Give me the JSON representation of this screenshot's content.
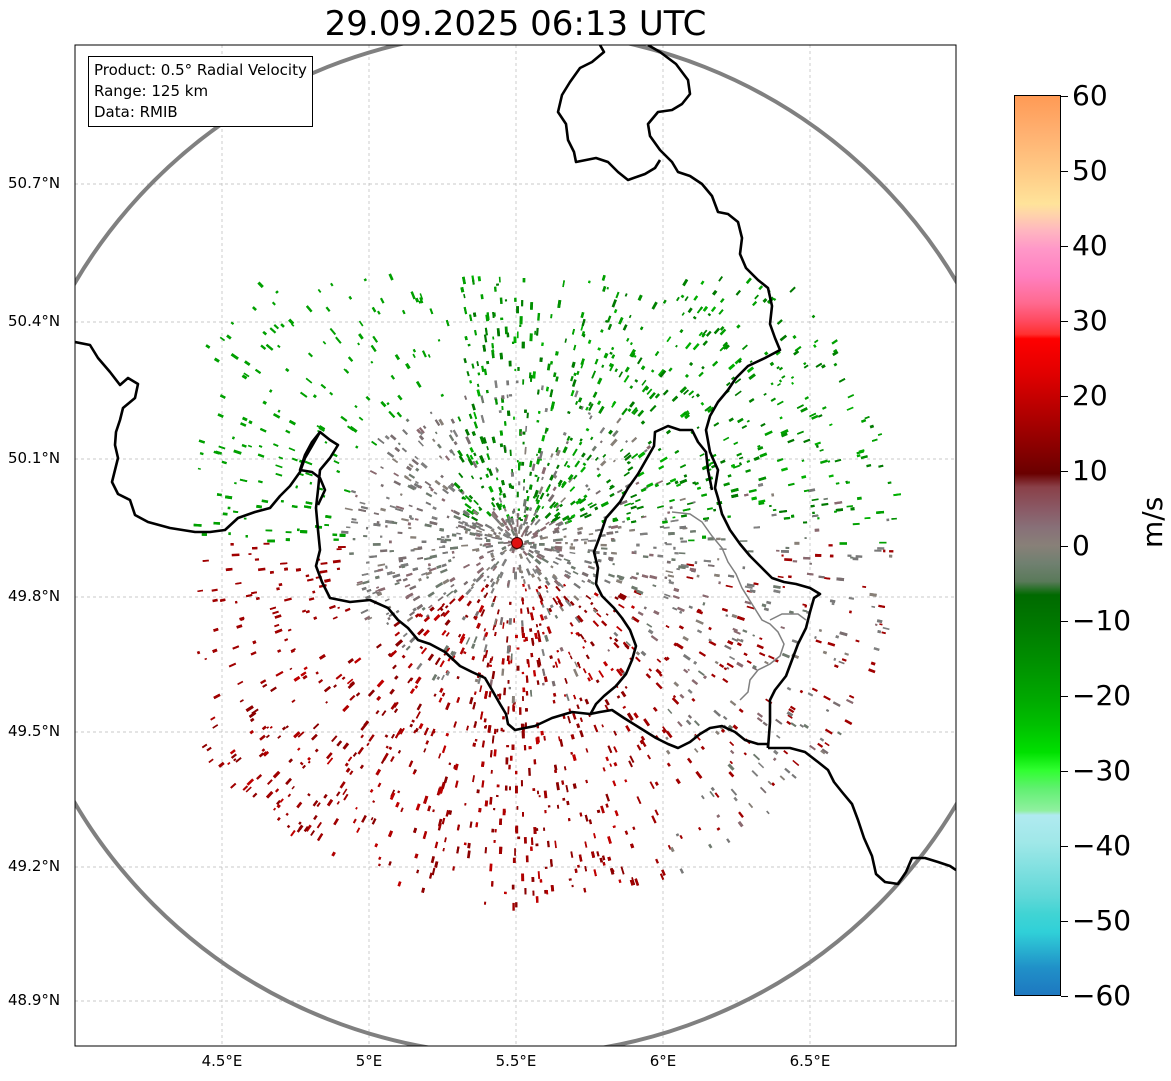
{
  "title": "29.09.2025 06:13 UTC",
  "info": {
    "product": "Product: 0.5° Radial Velocity",
    "range": "Range: 125 km",
    "data": "Data: RMIB"
  },
  "map": {
    "radar_site": "radar-site-marker",
    "lat_labels": [
      "50.7°N",
      "50.4°N",
      "50.1°N",
      "49.8°N",
      "49.5°N",
      "49.2°N",
      "48.9°N"
    ],
    "lon_labels": [
      "4.5°E",
      "5°E",
      "5.5°E",
      "6°E",
      "6.5°E"
    ]
  },
  "colorbar": {
    "unit": "m/s",
    "ticks": [
      "60",
      "50",
      "40",
      "30",
      "20",
      "10",
      "0",
      "−10",
      "−20",
      "−30",
      "−40",
      "−50",
      "−60"
    ],
    "range": [
      -60,
      60
    ]
  },
  "colors": {
    "border": "#000000",
    "range_ring": "#808080",
    "radar_marker": "#e01010"
  }
}
